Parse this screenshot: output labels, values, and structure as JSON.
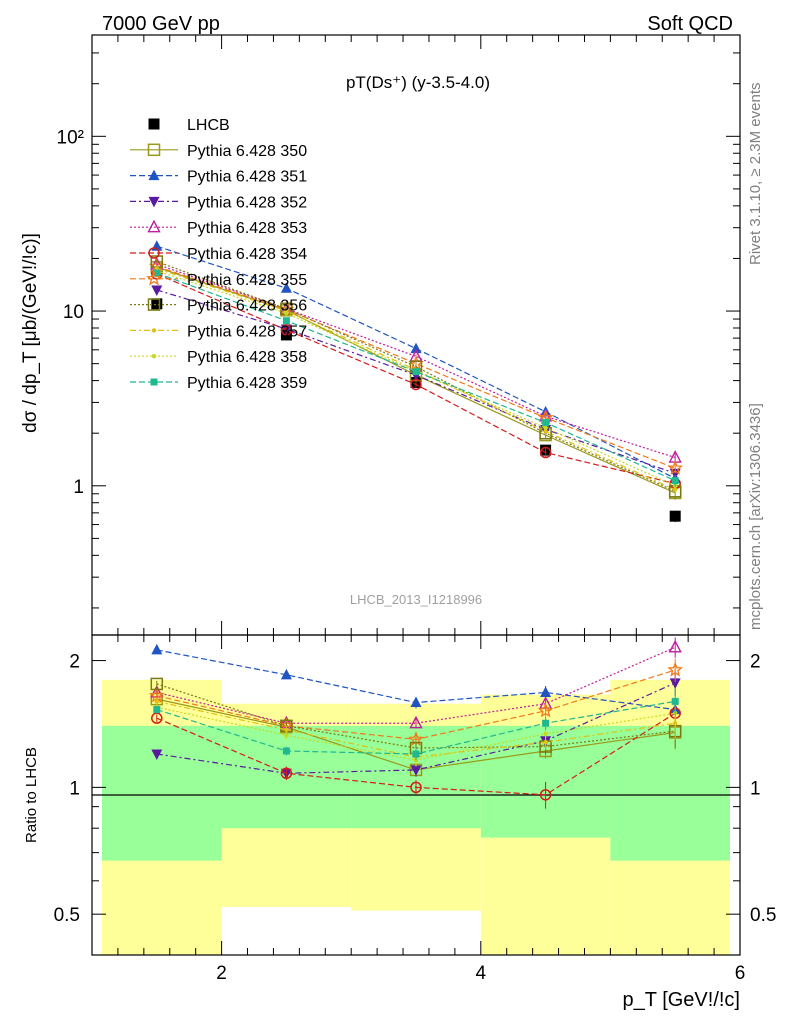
{
  "header": {
    "left": "7000 GeV pp",
    "right": "Soft QCD"
  },
  "side": {
    "rivet": "Rivet 3.1.10, ≥ 2.3M events",
    "mcplots": "mcplots.cern.ch [arXiv:1306.3436]"
  },
  "chart_data": [
    {
      "type": "line",
      "title": "pT(Ds⁺) (y-3.5-4.0)",
      "ylabel": "dσ / dp_T [μb/(GeV!/!c)]",
      "xlabel": "",
      "watermark": "LHCB_2013_I1218996",
      "xlim": [
        1.0,
        6.0
      ],
      "ylim": [
        0.14,
        380
      ],
      "yscale": "log",
      "ytick_labels": [
        "1",
        "10",
        "10²"
      ],
      "x": [
        1.5,
        2.5,
        3.5,
        4.5,
        5.5
      ],
      "bin_edges": [
        1,
        2,
        3,
        4,
        5,
        6
      ],
      "legend_position": "top-left",
      "series": [
        {
          "name": "LHCB",
          "color": "#000000",
          "marker": "square-filled",
          "dash": "",
          "values": [
            11.0,
            7.3,
            3.9,
            1.6,
            0.67
          ],
          "errors": [
            0.6,
            0.4,
            0.2,
            0.1,
            0.05
          ]
        },
        {
          "name": "Pythia 6.428 350",
          "color": "#9a9a1a",
          "marker": "square-open",
          "dash": "",
          "values": [
            17.8,
            10.1,
            4.3,
            1.95,
            0.91
          ],
          "errors": [
            0.4,
            0.3,
            0.15,
            0.1,
            0.08
          ]
        },
        {
          "name": "Pythia 6.428 351",
          "color": "#1f54c2",
          "marker": "triangle-up-filled",
          "dash": "6,3",
          "values": [
            23.5,
            13.5,
            6.1,
            2.65,
            1.1
          ],
          "errors": [
            0.4,
            0.3,
            0.15,
            0.1,
            0.08
          ]
        },
        {
          "name": "Pythia 6.428 352",
          "color": "#5a1aa0",
          "marker": "triangle-down-filled",
          "dash": "6,3,2,3",
          "values": [
            13.2,
            7.9,
            4.3,
            2.1,
            1.18
          ],
          "errors": [
            0.4,
            0.3,
            0.15,
            0.1,
            0.08
          ]
        },
        {
          "name": "Pythia 6.428 353",
          "color": "#c01c9c",
          "marker": "triangle-up-open",
          "dash": "2,2",
          "values": [
            18.5,
            10.3,
            5.5,
            2.5,
            1.45
          ],
          "errors": [
            0.4,
            0.3,
            0.15,
            0.1,
            0.08
          ]
        },
        {
          "name": "Pythia 6.428 354",
          "color": "#d41c1c",
          "marker": "circle-open",
          "dash": "6,3",
          "values": [
            16.3,
            7.8,
            3.8,
            1.55,
            1.03
          ],
          "errors": [
            0.4,
            0.3,
            0.15,
            0.1,
            0.08
          ]
        },
        {
          "name": "Pythia 6.428 355",
          "color": "#f07a1a",
          "marker": "star-open",
          "dash": "6,3",
          "values": [
            18.0,
            10.2,
            5.0,
            2.45,
            1.26
          ],
          "errors": [
            0.4,
            0.3,
            0.15,
            0.1,
            0.08
          ]
        },
        {
          "name": "Pythia 6.428 356",
          "color": "#7a7a10",
          "marker": "square-open",
          "dash": "2,2",
          "values": [
            19.2,
            10.3,
            4.8,
            2.0,
            0.93
          ],
          "errors": [
            0.4,
            0.3,
            0.15,
            0.1,
            0.08
          ]
        },
        {
          "name": "Pythia 6.428 357",
          "color": "#e0c010",
          "marker": "dot",
          "dash": "6,3,2,3",
          "values": [
            17.5,
            10.0,
            4.6,
            2.05,
            0.95
          ],
          "errors": [
            0.4,
            0.3,
            0.15,
            0.1,
            0.08
          ]
        },
        {
          "name": "Pythia 6.428 358",
          "color": "#c8d820",
          "marker": "dot",
          "dash": "2,2",
          "values": [
            17.0,
            9.7,
            4.5,
            2.15,
            1.0
          ],
          "errors": [
            0.4,
            0.3,
            0.15,
            0.1,
            0.08
          ]
        },
        {
          "name": "Pythia 6.428 359",
          "color": "#20b890",
          "marker": "square-filled-small",
          "dash": "6,3",
          "values": [
            16.5,
            8.8,
            4.5,
            2.3,
            1.07
          ],
          "errors": [
            0.4,
            0.3,
            0.15,
            0.1,
            0.08
          ]
        }
      ]
    },
    {
      "type": "line",
      "title": "",
      "ylabel": "Ratio to LHCB",
      "xlabel": "p_T [GeV!/!c]",
      "xlim": [
        1.0,
        6.0
      ],
      "ylim": [
        0.4,
        2.3
      ],
      "yscale": "log",
      "ytick_labels": [
        "0.5",
        "1",
        "2"
      ],
      "xtick_labels": [
        "2",
        "4",
        "6"
      ],
      "x": [
        1.5,
        2.5,
        3.5,
        4.5,
        5.5
      ],
      "bin_edges": [
        1,
        2,
        3,
        4,
        5,
        6
      ],
      "bands": {
        "inner": {
          "color": "#99ff99",
          "lo": [
            0.67,
            0.8,
            0.8,
            0.76,
            0.67
          ],
          "hi": [
            1.4,
            1.4,
            1.4,
            1.4,
            1.4
          ]
        },
        "outer": {
          "color": "#ffff99",
          "lo": [
            0.4,
            0.52,
            0.51,
            0.36,
            0.4
          ],
          "hi": [
            1.8,
            1.58,
            1.58,
            1.66,
            1.8
          ]
        }
      },
      "series": [
        {
          "name": "Pythia 6.428 350",
          "values": [
            1.62,
            1.39,
            1.1,
            1.22,
            1.35
          ],
          "errors": [
            0.03,
            0.03,
            0.03,
            0.05,
            0.12
          ]
        },
        {
          "name": "Pythia 6.428 351",
          "values": [
            2.12,
            1.85,
            1.59,
            1.68,
            1.53
          ],
          "errors": [
            0.03,
            0.03,
            0.05,
            0.06,
            0.1
          ]
        },
        {
          "name": "Pythia 6.428 352",
          "values": [
            1.2,
            1.08,
            1.1,
            1.29,
            1.77
          ],
          "errors": [
            0.03,
            0.03,
            0.04,
            0.05,
            0.12
          ]
        },
        {
          "name": "Pythia 6.428 353",
          "values": [
            1.68,
            1.42,
            1.42,
            1.58,
            2.15
          ],
          "errors": [
            0.03,
            0.03,
            0.04,
            0.05,
            0.12
          ]
        },
        {
          "name": "Pythia 6.428 354",
          "values": [
            1.46,
            1.08,
            1.0,
            0.96,
            1.5
          ],
          "errors": [
            0.03,
            0.04,
            0.04,
            0.07,
            0.12
          ]
        },
        {
          "name": "Pythia 6.428 355",
          "values": [
            1.65,
            1.4,
            1.3,
            1.52,
            1.9
          ],
          "errors": [
            0.03,
            0.03,
            0.04,
            0.05,
            0.12
          ]
        },
        {
          "name": "Pythia 6.428 356",
          "values": [
            1.76,
            1.4,
            1.24,
            1.25,
            1.36
          ],
          "errors": [
            0.03,
            0.03,
            0.04,
            0.05,
            0.12
          ]
        },
        {
          "name": "Pythia 6.428 357",
          "values": [
            1.6,
            1.37,
            1.18,
            1.28,
            1.42
          ],
          "errors": [
            0.03,
            0.03,
            0.04,
            0.05,
            0.12
          ]
        },
        {
          "name": "Pythia 6.428 358",
          "values": [
            1.55,
            1.33,
            1.16,
            1.34,
            1.5
          ],
          "errors": [
            0.03,
            0.03,
            0.04,
            0.05,
            0.12
          ]
        },
        {
          "name": "Pythia 6.428 359",
          "values": [
            1.53,
            1.22,
            1.2,
            1.42,
            1.6
          ],
          "errors": [
            0.03,
            0.03,
            0.04,
            0.05,
            0.12
          ]
        }
      ]
    }
  ]
}
